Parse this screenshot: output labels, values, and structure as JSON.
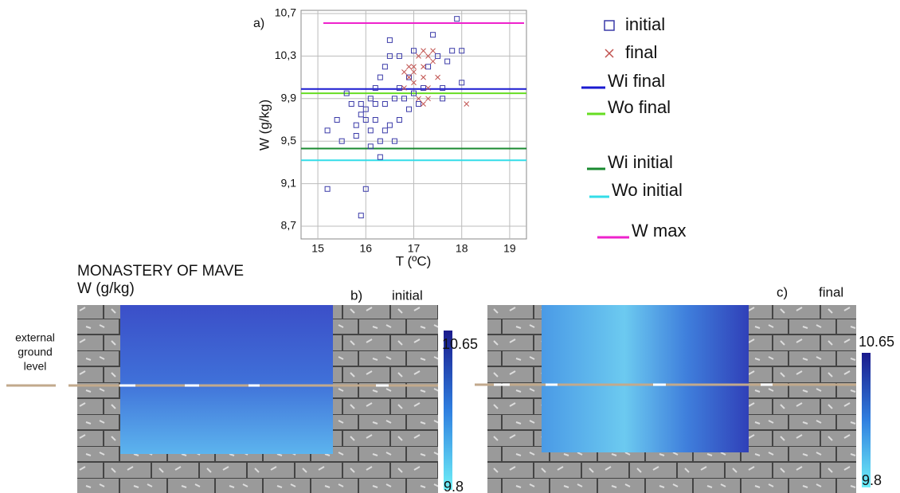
{
  "chart_data": {
    "type": "scatter",
    "panel_label": "a)",
    "x_label": "T (ºC)",
    "y_label": "W (g/kg)",
    "xlim": [
      14.65,
      19.35
    ],
    "xticks": [
      15,
      16,
      17,
      18,
      19
    ],
    "ylim": [
      8.58,
      10.73
    ],
    "yticks": [
      {
        "value": 8.7,
        "label": "8,7"
      },
      {
        "value": 9.1,
        "label": "9,1"
      },
      {
        "value": 9.5,
        "label": "9,5"
      },
      {
        "value": 9.9,
        "label": "9,9"
      },
      {
        "value": 10.3,
        "label": "10,3"
      },
      {
        "value": 10.7,
        "label": "10,7"
      }
    ],
    "grid": true,
    "series": [
      {
        "name": "initial",
        "marker": "square",
        "color": "#3a3aa8",
        "x": [
          15.2,
          15.2,
          15.4,
          15.5,
          15.6,
          15.7,
          15.8,
          15.8,
          15.9,
          15.9,
          16.0,
          16.0,
          16.1,
          16.1,
          16.2,
          16.2,
          16.3,
          16.3,
          16.3,
          16.4,
          16.4,
          16.5,
          16.5,
          16.5,
          16.6,
          16.6,
          16.7,
          16.7,
          16.8,
          16.9,
          16.9,
          17.0,
          17.0,
          17.1,
          17.2,
          17.3,
          17.4,
          17.5,
          17.6,
          17.7,
          17.8,
          17.9,
          18.0,
          18.0,
          17.6,
          16.0,
          16.2,
          15.9,
          16.7,
          16.4,
          16.1
        ],
        "values": [
          9.6,
          9.05,
          9.7,
          9.5,
          9.95,
          9.85,
          9.65,
          9.55,
          9.75,
          8.8,
          9.05,
          9.8,
          9.9,
          9.6,
          10.0,
          9.7,
          9.5,
          9.35,
          10.1,
          9.85,
          10.2,
          10.3,
          9.65,
          10.45,
          9.9,
          9.5,
          10.0,
          9.7,
          9.9,
          9.8,
          10.1,
          10.35,
          9.95,
          9.85,
          10.0,
          10.2,
          10.5,
          10.3,
          10.0,
          10.25,
          10.35,
          10.65,
          10.35,
          10.05,
          9.9,
          9.7,
          9.85,
          9.85,
          10.3,
          9.6,
          9.45
        ]
      },
      {
        "name": "final",
        "marker": "cross",
        "color": "#c0504d",
        "x": [
          16.8,
          16.9,
          17.0,
          17.1,
          17.2,
          17.3,
          17.4,
          17.0,
          17.2,
          17.3,
          17.1,
          17.2,
          16.9,
          17.5,
          18.1,
          17.0,
          17.4,
          16.8,
          17.2,
          17.3
        ],
        "values": [
          10.0,
          10.1,
          10.2,
          10.3,
          10.35,
          10.3,
          10.25,
          10.05,
          10.1,
          10.0,
          9.9,
          9.85,
          10.2,
          10.1,
          9.85,
          10.15,
          10.35,
          10.15,
          10.2,
          9.9
        ]
      }
    ],
    "reference_lines": [
      {
        "name": "Wi final",
        "value": 9.99,
        "color": "#1a1ad0"
      },
      {
        "name": "Wo final",
        "value": 9.95,
        "color": "#66dd22"
      },
      {
        "name": "Wi initial",
        "value": 9.43,
        "color": "#1a8a30"
      },
      {
        "name": "Wo initial",
        "value": 9.32,
        "color": "#33dde8"
      },
      {
        "name": "W max",
        "value": 10.61,
        "color": "#ee22cc"
      }
    ]
  },
  "maps": {
    "title": "MONASTERY OF MAVE",
    "unit": "W (g/kg)",
    "ground_label": [
      "external",
      "ground",
      "level"
    ],
    "panels": [
      {
        "label": "b)",
        "state": "initial",
        "colorbar_max": "10.65",
        "colorbar_min": "9.8"
      },
      {
        "label": "c)",
        "state": "final",
        "colorbar_max": "10.65",
        "colorbar_min": "9.8"
      }
    ]
  }
}
